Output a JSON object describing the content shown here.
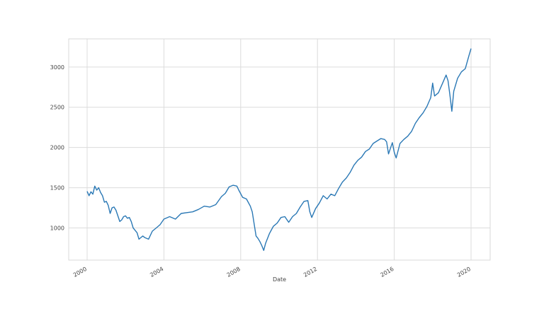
{
  "chart_data": {
    "type": "line",
    "title": "",
    "xlabel": "Date",
    "ylabel": "",
    "xlim": [
      2000,
      2020
    ],
    "ylim": [
      600,
      3350
    ],
    "grid": true,
    "legend": "none",
    "line_color": "#2a78b5",
    "x_ticks": [
      {
        "value": 2000,
        "label": "2000"
      },
      {
        "value": 2004,
        "label": "2004"
      },
      {
        "value": 2008,
        "label": "2008"
      },
      {
        "value": 2012,
        "label": "2012"
      },
      {
        "value": 2016,
        "label": "2016"
      },
      {
        "value": 2020,
        "label": "2020"
      }
    ],
    "y_ticks": [
      {
        "value": 1000,
        "label": "1000"
      },
      {
        "value": 1500,
        "label": "1500"
      },
      {
        "value": 2000,
        "label": "2000"
      },
      {
        "value": 2500,
        "label": "2500"
      },
      {
        "value": 3000,
        "label": "3000"
      }
    ],
    "series": [
      {
        "x": [
          2000.0,
          2000.1,
          2000.2,
          2000.3,
          2000.4,
          2000.5,
          2000.6,
          2000.7,
          2000.8,
          2000.9,
          2001.0,
          2001.1,
          2001.2,
          2001.3,
          2001.4,
          2001.5,
          2001.6,
          2001.7,
          2001.8,
          2001.9,
          2002.0,
          2002.1,
          2002.2,
          2002.3,
          2002.4,
          2002.5,
          2002.6,
          2002.7,
          2002.8,
          2002.9,
          2003.0,
          2003.2,
          2003.4,
          2003.6,
          2003.8,
          2004.0,
          2004.3,
          2004.6,
          2004.9,
          2005.2,
          2005.5,
          2005.8,
          2006.1,
          2006.4,
          2006.7,
          2007.0,
          2007.2,
          2007.4,
          2007.6,
          2007.8,
          2007.9,
          2008.1,
          2008.3,
          2008.5,
          2008.6,
          2008.7,
          2008.8,
          2008.9,
          2009.0,
          2009.1,
          2009.2,
          2009.3,
          2009.5,
          2009.7,
          2009.9,
          2010.1,
          2010.3,
          2010.5,
          2010.7,
          2010.9,
          2011.1,
          2011.3,
          2011.5,
          2011.6,
          2011.7,
          2011.9,
          2012.1,
          2012.3,
          2012.5,
          2012.7,
          2012.9,
          2013.1,
          2013.3,
          2013.5,
          2013.7,
          2013.9,
          2014.1,
          2014.3,
          2014.5,
          2014.7,
          2014.9,
          2015.1,
          2015.3,
          2015.5,
          2015.6,
          2015.7,
          2015.9,
          2016.0,
          2016.1,
          2016.3,
          2016.5,
          2016.7,
          2016.9,
          2017.1,
          2017.3,
          2017.5,
          2017.7,
          2017.9,
          2018.0,
          2018.1,
          2018.3,
          2018.5,
          2018.7,
          2018.8,
          2018.9,
          2019.0,
          2019.1,
          2019.3,
          2019.5,
          2019.7,
          2019.9,
          2020.0
        ],
        "y": [
          1455,
          1400,
          1450,
          1420,
          1520,
          1470,
          1500,
          1440,
          1400,
          1320,
          1330,
          1280,
          1180,
          1250,
          1260,
          1220,
          1150,
          1080,
          1100,
          1140,
          1150,
          1120,
          1130,
          1080,
          1000,
          970,
          940,
          860,
          880,
          900,
          880,
          860,
          960,
          1000,
          1040,
          1110,
          1140,
          1110,
          1180,
          1190,
          1200,
          1230,
          1270,
          1260,
          1290,
          1390,
          1430,
          1510,
          1530,
          1520,
          1470,
          1380,
          1360,
          1270,
          1200,
          1050,
          900,
          870,
          830,
          780,
          720,
          810,
          930,
          1020,
          1060,
          1130,
          1140,
          1070,
          1140,
          1180,
          1260,
          1330,
          1340,
          1200,
          1130,
          1240,
          1310,
          1400,
          1360,
          1420,
          1400,
          1490,
          1570,
          1620,
          1690,
          1780,
          1840,
          1880,
          1950,
          1980,
          2050,
          2080,
          2110,
          2100,
          2070,
          1920,
          2060,
          1940,
          1870,
          2050,
          2100,
          2140,
          2200,
          2300,
          2370,
          2430,
          2510,
          2620,
          2800,
          2640,
          2680,
          2790,
          2900,
          2830,
          2650,
          2450,
          2700,
          2860,
          2940,
          2980,
          3150,
          3230
        ]
      }
    ]
  }
}
